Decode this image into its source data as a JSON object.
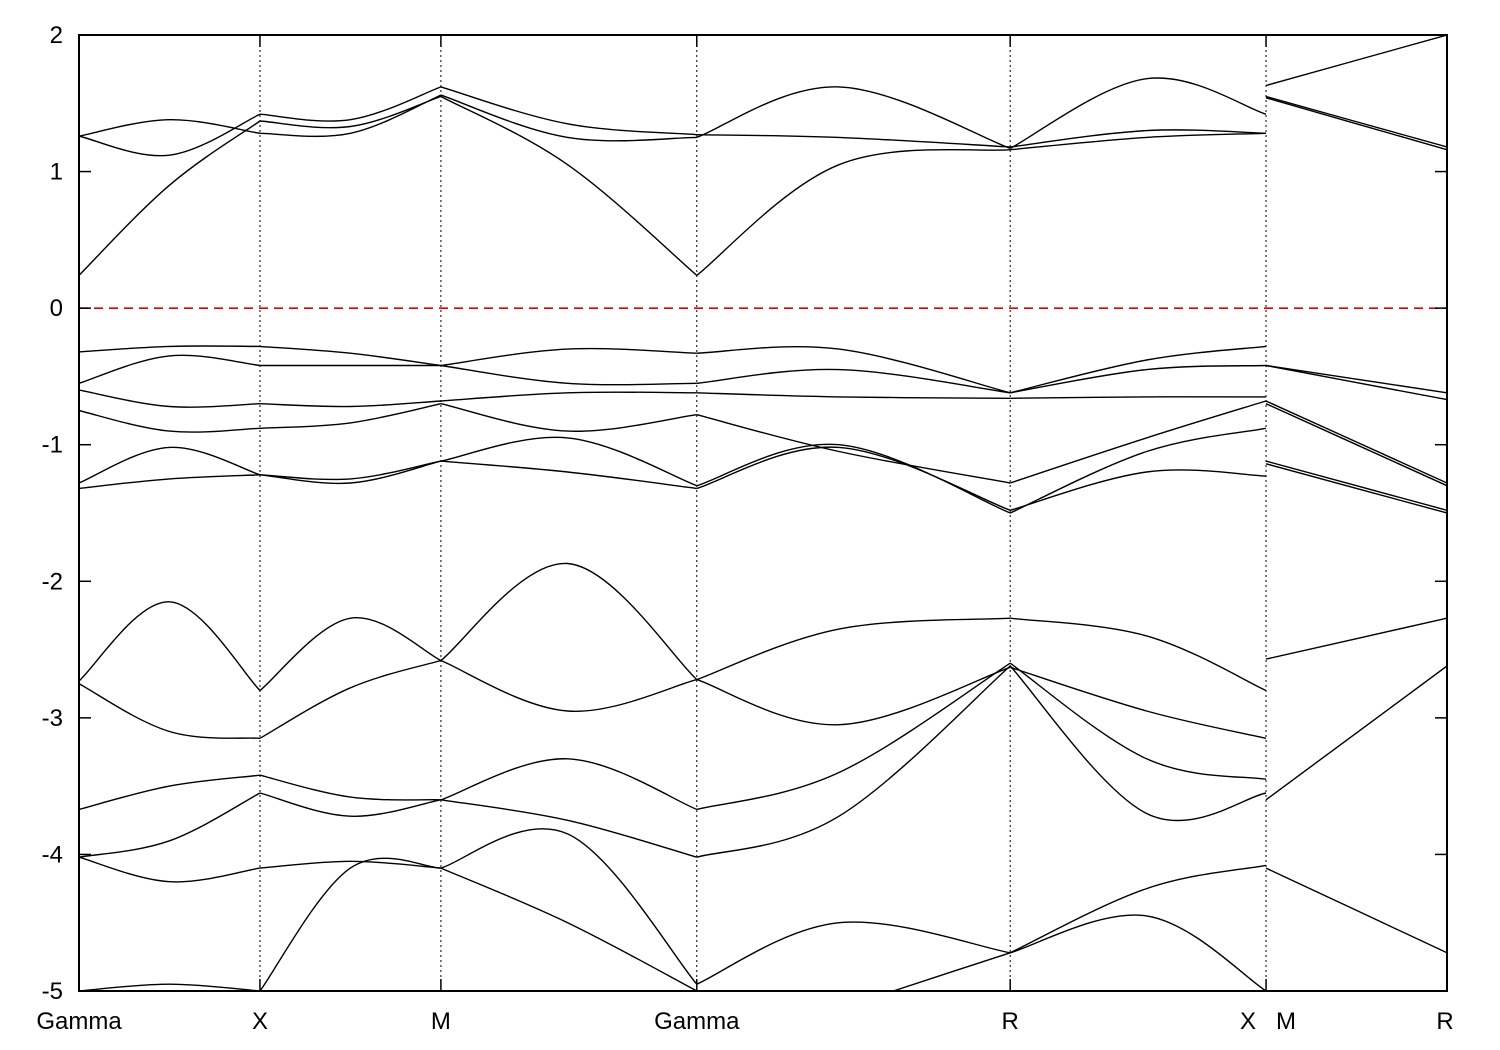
{
  "chart_data": {
    "type": "line",
    "title": "",
    "xlabel": "",
    "ylabel": "",
    "ylim": [
      -5,
      2
    ],
    "yticks": [
      2,
      1,
      0,
      -1,
      -2,
      -3,
      -4,
      -5
    ],
    "ytick_labels": [
      "2",
      "1",
      "0",
      "-1",
      "-2",
      "-3",
      "-4",
      "-5"
    ],
    "k_path": [
      {
        "label": "Gamma",
        "x": 0.0
      },
      {
        "label": "X",
        "x": 1.0
      },
      {
        "label": "M",
        "x": 2.0
      },
      {
        "label": "Gamma",
        "x": 3.414
      },
      {
        "label": "R",
        "x": 5.146
      },
      {
        "label": "X M",
        "x": 6.56
      },
      {
        "label": "R",
        "x": 7.56
      }
    ],
    "xlim": [
      0,
      7.56
    ],
    "fermi_level": 0,
    "grid": false,
    "legend": "none",
    "colors": {
      "bands": "#000000",
      "fermi": "#e00000"
    },
    "series": [
      {
        "segments": [
          {
            "x": [
              0,
              0.5,
              1.0
            ],
            "y": [
              0.24,
              0.9,
              1.37
            ]
          },
          {
            "x": [
              1.0,
              1.5,
              2.0
            ],
            "y": [
              1.37,
              1.33,
              1.55
            ]
          },
          {
            "x": [
              2.0,
              2.7,
              3.414
            ],
            "y": [
              1.55,
              1.05,
              0.24
            ]
          },
          {
            "x": [
              3.414,
              4.2,
              5.146
            ],
            "y": [
              0.24,
              1.05,
              1.16
            ]
          },
          {
            "x": [
              5.146,
              5.9,
              6.56
            ],
            "y": [
              1.16,
              1.25,
              1.28
            ]
          },
          {
            "x": [
              6.56,
              7.56
            ],
            "y": [
              1.55,
              1.18
            ]
          }
        ]
      },
      {
        "segments": [
          {
            "x": [
              0,
              0.5,
              1.0
            ],
            "y": [
              1.26,
              1.38,
              1.28
            ]
          },
          {
            "x": [
              1.0,
              1.5,
              2.0
            ],
            "y": [
              1.28,
              1.28,
              1.56
            ]
          },
          {
            "x": [
              2.0,
              2.7,
              3.414
            ],
            "y": [
              1.56,
              1.25,
              1.25
            ]
          },
          {
            "x": [
              3.414,
              4.2,
              5.146
            ],
            "y": [
              1.25,
              1.62,
              1.17
            ]
          },
          {
            "x": [
              5.146,
              5.9,
              6.56
            ],
            "y": [
              1.17,
              1.68,
              1.42
            ]
          },
          {
            "x": [
              6.56,
              7.56
            ],
            "y": [
              1.63,
              2.0
            ]
          }
        ]
      },
      {
        "segments": [
          {
            "x": [
              0,
              0.5,
              1.0
            ],
            "y": [
              1.26,
              1.12,
              1.42
            ]
          },
          {
            "x": [
              1.0,
              1.5,
              2.0
            ],
            "y": [
              1.42,
              1.38,
              1.62
            ]
          },
          {
            "x": [
              2.0,
              2.7,
              3.414
            ],
            "y": [
              1.62,
              1.35,
              1.27
            ]
          },
          {
            "x": [
              3.414,
              4.2,
              5.146
            ],
            "y": [
              1.27,
              1.25,
              1.18
            ]
          },
          {
            "x": [
              5.146,
              5.9,
              6.56
            ],
            "y": [
              1.18,
              1.3,
              1.28
            ]
          },
          {
            "x": [
              6.56,
              7.56
            ],
            "y": [
              1.54,
              1.16
            ]
          }
        ]
      },
      {
        "segments": [
          {
            "x": [
              0,
              0.5,
              1.0
            ],
            "y": [
              -0.32,
              -0.28,
              -0.28
            ]
          },
          {
            "x": [
              1.0,
              1.5,
              2.0
            ],
            "y": [
              -0.28,
              -0.33,
              -0.42
            ]
          },
          {
            "x": [
              2.0,
              2.7,
              3.414
            ],
            "y": [
              -0.42,
              -0.3,
              -0.33
            ]
          },
          {
            "x": [
              3.414,
              4.2,
              5.146
            ],
            "y": [
              -0.33,
              -0.3,
              -0.62
            ]
          },
          {
            "x": [
              5.146,
              5.9,
              6.56
            ],
            "y": [
              -0.62,
              -0.38,
              -0.28
            ]
          },
          {
            "x": [
              6.56,
              7.56
            ],
            "y": [
              -0.42,
              -0.62
            ]
          }
        ]
      },
      {
        "segments": [
          {
            "x": [
              0,
              0.5,
              1.0
            ],
            "y": [
              -0.55,
              -0.35,
              -0.42
            ]
          },
          {
            "x": [
              1.0,
              1.5,
              2.0
            ],
            "y": [
              -0.42,
              -0.42,
              -0.42
            ]
          },
          {
            "x": [
              2.0,
              2.7,
              3.414
            ],
            "y": [
              -0.42,
              -0.55,
              -0.55
            ]
          },
          {
            "x": [
              3.414,
              4.2,
              5.146
            ],
            "y": [
              -0.55,
              -0.45,
              -0.62
            ]
          },
          {
            "x": [
              5.146,
              5.9,
              6.56
            ],
            "y": [
              -0.62,
              -0.45,
              -0.42
            ]
          },
          {
            "x": [
              6.56,
              7.56
            ],
            "y": [
              -0.42,
              -0.67
            ]
          }
        ]
      },
      {
        "segments": [
          {
            "x": [
              0,
              0.5,
              1.0
            ],
            "y": [
              -0.6,
              -0.72,
              -0.7
            ]
          },
          {
            "x": [
              1.0,
              1.5,
              2.0
            ],
            "y": [
              -0.7,
              -0.72,
              -0.68
            ]
          },
          {
            "x": [
              2.0,
              2.7,
              3.414
            ],
            "y": [
              -0.68,
              -0.62,
              -0.62
            ]
          },
          {
            "x": [
              3.414,
              4.2,
              5.146
            ],
            "y": [
              -0.62,
              -0.65,
              -0.66
            ]
          },
          {
            "x": [
              5.146,
              5.9,
              6.56
            ],
            "y": [
              -0.66,
              -0.65,
              -0.65
            ]
          },
          {
            "x": [
              6.56,
              7.56
            ],
            "y": [
              -0.68,
              -1.28
            ]
          }
        ]
      },
      {
        "segments": [
          {
            "x": [
              0,
              0.5,
              1.0
            ],
            "y": [
              -0.75,
              -0.9,
              -0.88
            ]
          },
          {
            "x": [
              1.0,
              1.5,
              2.0
            ],
            "y": [
              -0.88,
              -0.84,
              -0.7
            ]
          },
          {
            "x": [
              2.0,
              2.7,
              3.414
            ],
            "y": [
              -0.7,
              -0.9,
              -0.78
            ]
          },
          {
            "x": [
              3.414,
              4.2,
              5.146
            ],
            "y": [
              -0.78,
              -1.05,
              -1.28
            ]
          },
          {
            "x": [
              5.146,
              5.9,
              6.56
            ],
            "y": [
              -1.28,
              -0.95,
              -0.68
            ]
          },
          {
            "x": [
              6.56,
              7.56
            ],
            "y": [
              -0.7,
              -1.3
            ]
          }
        ]
      },
      {
        "segments": [
          {
            "x": [
              0,
              0.5,
              1.0
            ],
            "y": [
              -1.28,
              -1.02,
              -1.22
            ]
          },
          {
            "x": [
              1.0,
              1.5,
              2.0
            ],
            "y": [
              -1.22,
              -1.25,
              -1.12
            ]
          },
          {
            "x": [
              2.0,
              2.7,
              3.414
            ],
            "y": [
              -1.12,
              -0.95,
              -1.3
            ]
          },
          {
            "x": [
              3.414,
              4.2,
              5.146
            ],
            "y": [
              -1.3,
              -1.0,
              -1.5
            ]
          },
          {
            "x": [
              5.146,
              5.9,
              6.56
            ],
            "y": [
              -1.5,
              -1.05,
              -0.88
            ]
          },
          {
            "x": [
              6.56,
              7.56
            ],
            "y": [
              -1.12,
              -1.48
            ]
          }
        ]
      },
      {
        "segments": [
          {
            "x": [
              0,
              0.5,
              1.0
            ],
            "y": [
              -1.32,
              -1.25,
              -1.22
            ]
          },
          {
            "x": [
              1.0,
              1.5,
              2.0
            ],
            "y": [
              -1.22,
              -1.28,
              -1.12
            ]
          },
          {
            "x": [
              2.0,
              2.7,
              3.414
            ],
            "y": [
              -1.12,
              -1.2,
              -1.32
            ]
          },
          {
            "x": [
              3.414,
              4.2,
              5.146
            ],
            "y": [
              -1.32,
              -1.02,
              -1.48
            ]
          },
          {
            "x": [
              5.146,
              5.9,
              6.56
            ],
            "y": [
              -1.48,
              -1.2,
              -1.23
            ]
          },
          {
            "x": [
              6.56,
              7.56
            ],
            "y": [
              -1.14,
              -1.5
            ]
          }
        ]
      },
      {
        "segments": [
          {
            "x": [
              0,
              0.5,
              1.0
            ],
            "y": [
              -2.73,
              -2.15,
              -2.8
            ]
          },
          {
            "x": [
              1.0,
              1.5,
              2.0
            ],
            "y": [
              -2.8,
              -2.27,
              -2.58
            ]
          },
          {
            "x": [
              2.0,
              2.7,
              3.414
            ],
            "y": [
              -2.58,
              -1.87,
              -2.72
            ]
          },
          {
            "x": [
              3.414,
              4.2,
              5.146
            ],
            "y": [
              -2.72,
              -2.35,
              -2.27
            ]
          },
          {
            "x": [
              5.146,
              5.9,
              6.56
            ],
            "y": [
              -2.27,
              -2.4,
              -2.8
            ]
          },
          {
            "x": [
              6.56,
              7.56
            ],
            "y": [
              -2.57,
              -2.27
            ]
          }
        ]
      },
      {
        "segments": [
          {
            "x": [
              0,
              0.5,
              1.0
            ],
            "y": [
              -2.75,
              -3.1,
              -3.15
            ]
          },
          {
            "x": [
              1.0,
              1.5,
              2.0
            ],
            "y": [
              -3.15,
              -2.78,
              -2.58
            ]
          },
          {
            "x": [
              2.0,
              2.7,
              3.414
            ],
            "y": [
              -2.58,
              -2.95,
              -2.72
            ]
          },
          {
            "x": [
              3.414,
              4.2,
              5.146
            ],
            "y": [
              -2.72,
              -3.05,
              -2.63
            ]
          },
          {
            "x": [
              5.146,
              5.9,
              6.56
            ],
            "y": [
              -2.63,
              -2.95,
              -3.15
            ]
          },
          {
            "x": [
              6.56,
              7.56
            ],
            "y": [
              -3.6,
              -2.62
            ]
          }
        ]
      },
      {
        "segments": [
          {
            "x": [
              0,
              0.5,
              1.0
            ],
            "y": [
              -3.67,
              -3.5,
              -3.42
            ]
          },
          {
            "x": [
              1.0,
              1.5,
              2.0
            ],
            "y": [
              -3.42,
              -3.58,
              -3.6
            ]
          },
          {
            "x": [
              2.0,
              2.7,
              3.414
            ],
            "y": [
              -3.6,
              -3.3,
              -3.67
            ]
          },
          {
            "x": [
              3.414,
              4.2,
              5.146
            ],
            "y": [
              -3.67,
              -3.4,
              -2.6
            ]
          },
          {
            "x": [
              5.146,
              5.9,
              6.56
            ],
            "y": [
              -2.6,
              -3.3,
              -3.45
            ]
          },
          {
            "x": [
              6.56,
              7.56
            ],
            "y": [
              -4.1,
              -4.72
            ]
          }
        ]
      },
      {
        "segments": [
          {
            "x": [
              0,
              0.5,
              1.0
            ],
            "y": [
              -4.02,
              -3.9,
              -3.55
            ]
          },
          {
            "x": [
              1.0,
              1.5,
              2.0
            ],
            "y": [
              -3.55,
              -3.72,
              -3.6
            ]
          },
          {
            "x": [
              2.0,
              2.7,
              3.414
            ],
            "y": [
              -3.6,
              -3.75,
              -4.02
            ]
          },
          {
            "x": [
              3.414,
              4.2,
              5.146
            ],
            "y": [
              -4.02,
              -3.72,
              -2.62
            ]
          },
          {
            "x": [
              5.146,
              5.9,
              6.56
            ],
            "y": [
              -2.62,
              -3.7,
              -3.55
            ]
          }
        ]
      },
      {
        "segments": [
          {
            "x": [
              0,
              0.5,
              1.0
            ],
            "y": [
              -4.02,
              -4.2,
              -4.1
            ]
          },
          {
            "x": [
              1.0,
              1.5,
              2.0
            ],
            "y": [
              -4.1,
              -4.05,
              -4.1
            ]
          },
          {
            "x": [
              2.0,
              2.7,
              3.414
            ],
            "y": [
              -4.1,
              -3.85,
              -4.95
            ]
          },
          {
            "x": [
              3.414,
              4.2,
              5.146
            ],
            "y": [
              -4.95,
              -4.5,
              -4.72
            ]
          },
          {
            "x": [
              5.146,
              5.9,
              6.56
            ],
            "y": [
              -4.72,
              -4.25,
              -4.08
            ]
          }
        ]
      },
      {
        "segments": [
          {
            "x": [
              0,
              0.5,
              1.0
            ],
            "y": [
              -5.0,
              -4.95,
              -5.0
            ]
          },
          {
            "x": [
              1.0,
              1.5,
              2.0
            ],
            "y": [
              -5.0,
              -4.1,
              -4.1
            ]
          },
          {
            "x": [
              2.0,
              2.7,
              3.414
            ],
            "y": [
              -4.1,
              -4.5,
              -5.0
            ]
          },
          {
            "x": [
              4.5,
              5.146
            ],
            "y": [
              -5.0,
              -4.72
            ]
          },
          {
            "x": [
              5.146,
              5.9,
              6.56
            ],
            "y": [
              -4.72,
              -4.45,
              -5.0
            ]
          }
        ]
      }
    ]
  }
}
